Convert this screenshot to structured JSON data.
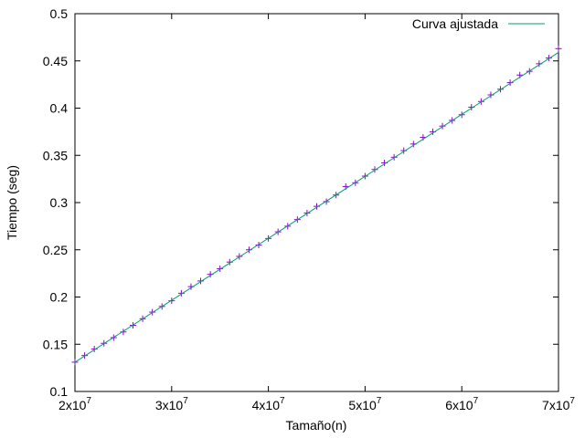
{
  "chart_data": {
    "type": "line",
    "title": "",
    "xlabel": "Tamaño(n)",
    "ylabel": "Tiempo (seg)",
    "xlim": [
      20000000,
      70000000
    ],
    "ylim": [
      0.1,
      0.5
    ],
    "grid": false,
    "legend_position": "top-right",
    "x_ticks": [
      {
        "value": 20000000,
        "mantissa": "2",
        "base": "x10",
        "exp": "7"
      },
      {
        "value": 30000000,
        "mantissa": "3",
        "base": "x10",
        "exp": "7"
      },
      {
        "value": 40000000,
        "mantissa": "4",
        "base": "x10",
        "exp": "7"
      },
      {
        "value": 50000000,
        "mantissa": "5",
        "base": "x10",
        "exp": "7"
      },
      {
        "value": 60000000,
        "mantissa": "6",
        "base": "x10",
        "exp": "7"
      },
      {
        "value": 70000000,
        "mantissa": "7",
        "base": "x10",
        "exp": "7"
      }
    ],
    "y_ticks": [
      {
        "value": 0.1,
        "label": "0.1"
      },
      {
        "value": 0.15,
        "label": "0.15"
      },
      {
        "value": 0.2,
        "label": "0.2"
      },
      {
        "value": 0.25,
        "label": "0.25"
      },
      {
        "value": 0.3,
        "label": "0.3"
      },
      {
        "value": 0.35,
        "label": "0.35"
      },
      {
        "value": 0.4,
        "label": "0.4"
      },
      {
        "value": 0.45,
        "label": "0.45"
      },
      {
        "value": 0.5,
        "label": "0.5"
      }
    ],
    "series": [
      {
        "kind": "points",
        "marker": "+",
        "color": "#9400d3",
        "x": [
          20000000,
          21000000,
          22000000,
          23000000,
          24000000,
          25000000,
          26000000,
          27000000,
          28000000,
          29000000,
          30000000,
          31000000,
          32000000,
          33000000,
          34000000,
          35000000,
          36000000,
          37000000,
          38000000,
          39000000,
          40000000,
          41000000,
          42000000,
          43000000,
          44000000,
          45000000,
          46000000,
          47000000,
          48000000,
          49000000,
          50000000,
          51000000,
          52000000,
          53000000,
          54000000,
          55000000,
          56000000,
          57000000,
          58000000,
          59000000,
          60000000,
          61000000,
          62000000,
          63000000,
          64000000,
          65000000,
          66000000,
          67000000,
          68000000,
          69000000,
          70000000
        ],
        "y": [
          0.131,
          0.138,
          0.145,
          0.151,
          0.157,
          0.163,
          0.17,
          0.177,
          0.184,
          0.19,
          0.196,
          0.204,
          0.211,
          0.217,
          0.224,
          0.23,
          0.237,
          0.243,
          0.25,
          0.255,
          0.262,
          0.269,
          0.275,
          0.282,
          0.289,
          0.296,
          0.301,
          0.308,
          0.317,
          0.321,
          0.328,
          0.335,
          0.342,
          0.348,
          0.355,
          0.362,
          0.369,
          0.375,
          0.381,
          0.387,
          0.393,
          0.401,
          0.407,
          0.414,
          0.42,
          0.427,
          0.435,
          0.439,
          0.447,
          0.453,
          0.463
        ]
      },
      {
        "kind": "line",
        "name": "Curva ajustada",
        "color": "#009e73",
        "x": [
          20000000,
          70000000
        ],
        "y": [
          0.131,
          0.459
        ]
      }
    ]
  }
}
